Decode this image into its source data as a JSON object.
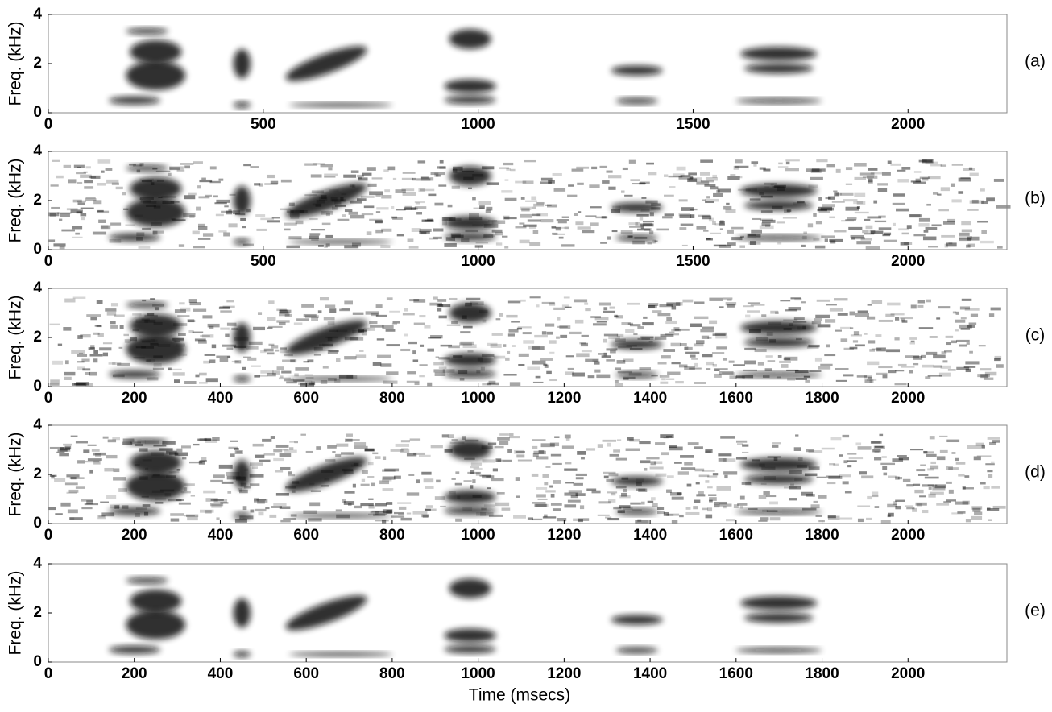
{
  "chart_data": [
    {
      "type": "spectrogram",
      "panel_label": "(a)",
      "ylabel": "Freq. (kHz)",
      "xlim": [
        0,
        2230
      ],
      "ylim": [
        0,
        4
      ],
      "xticks": [
        0,
        500,
        1000,
        1500,
        2000
      ],
      "yticks": [
        0,
        2,
        4
      ],
      "noise": false
    },
    {
      "type": "spectrogram",
      "panel_label": "(b)",
      "ylabel": "Freq. (kHz)",
      "xlim": [
        0,
        2230
      ],
      "ylim": [
        0,
        4
      ],
      "xticks": [
        0,
        500,
        1000,
        1500,
        2000
      ],
      "yticks": [
        0,
        2,
        4
      ],
      "noise": true
    },
    {
      "type": "spectrogram",
      "panel_label": "(c)",
      "ylabel": "Freq. (kHz)",
      "xlim": [
        0,
        2230
      ],
      "ylim": [
        0,
        4
      ],
      "xticks": [
        0,
        200,
        400,
        600,
        800,
        1000,
        1200,
        1400,
        1600,
        1800,
        2000
      ],
      "yticks": [
        0,
        2,
        4
      ],
      "noise": true
    },
    {
      "type": "spectrogram",
      "panel_label": "(d)",
      "ylabel": "Freq. (kHz)",
      "xlim": [
        0,
        2230
      ],
      "ylim": [
        0,
        4
      ],
      "xticks": [
        0,
        200,
        400,
        600,
        800,
        1000,
        1200,
        1400,
        1600,
        1800,
        2000
      ],
      "yticks": [
        0,
        2,
        4
      ],
      "noise": true
    },
    {
      "type": "spectrogram",
      "panel_label": "(e)",
      "ylabel": "Freq. (kHz)",
      "xlabel": "Time (msecs)",
      "xlim": [
        0,
        2230
      ],
      "ylim": [
        0,
        4
      ],
      "xticks": [
        0,
        200,
        400,
        600,
        800,
        1000,
        1200,
        1400,
        1600,
        1800,
        2000
      ],
      "yticks": [
        0,
        2,
        4
      ],
      "noise": false
    }
  ]
}
